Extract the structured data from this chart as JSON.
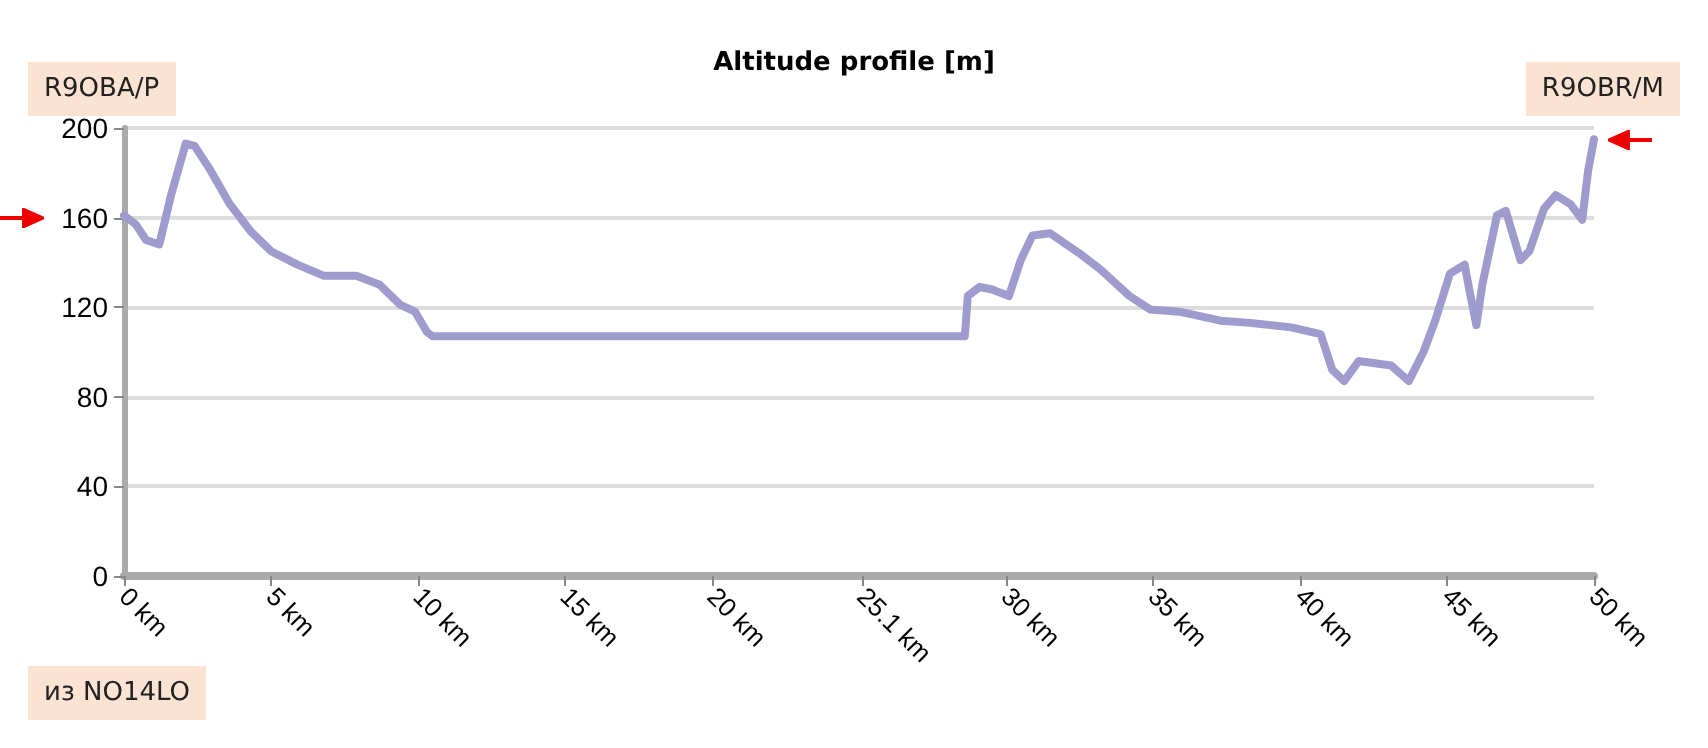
{
  "chart_data": {
    "type": "line",
    "title": "Altitude profile [m]",
    "annotations": [
      "R9OBA/P",
      "R9OBR/M",
      "из NO14LO"
    ],
    "x": [
      0,
      0.4,
      0.75,
      1.2,
      1.6,
      2.1,
      2.4,
      2.9,
      3.6,
      4.3,
      5.0,
      5.9,
      6.8,
      7.9,
      8.7,
      9.4,
      9.9,
      10.3,
      10.5,
      28.6,
      28.7,
      29.1,
      29.5,
      30.1,
      30.5,
      30.9,
      31.5,
      32.5,
      33.2,
      34.2,
      34.9,
      35.9,
      37.3,
      38.3,
      39.7,
      40.7,
      41.1,
      41.5,
      42.0,
      43.1,
      43.7,
      44.2,
      44.6,
      45.1,
      45.6,
      45.8,
      46.0,
      46.2,
      46.7,
      47.0,
      47.5,
      47.8,
      48.3,
      48.7,
      49.2,
      49.6,
      49.8,
      50
    ],
    "series": [
      {
        "color": "#9d9ccc",
        "values": [
          161,
          157,
          150,
          148,
          170,
          193,
          192,
          182,
          166,
          154,
          145,
          139,
          134,
          134,
          130,
          121,
          118,
          109,
          107,
          107,
          125,
          129,
          128,
          125,
          141,
          152,
          153,
          144,
          137,
          125,
          119,
          118,
          114,
          113,
          111,
          108,
          92,
          87,
          96,
          94,
          87,
          100,
          114,
          135,
          139,
          125,
          112,
          130,
          161,
          163,
          141,
          145,
          164,
          170,
          166,
          159,
          181,
          195
        ]
      }
    ],
    "xlim": [
      0,
      50
    ],
    "xticks": [
      {
        "value": 0,
        "label": "0 km"
      },
      {
        "value": 5,
        "label": "5 km"
      },
      {
        "value": 10,
        "label": "10 km"
      },
      {
        "value": 15,
        "label": "15 km"
      },
      {
        "value": 20,
        "label": "20 km"
      },
      {
        "value": 25.1,
        "label": "25.1 km"
      },
      {
        "value": 30,
        "label": "30 km"
      },
      {
        "value": 35,
        "label": "35 km"
      },
      {
        "value": 40,
        "label": "40 km"
      },
      {
        "value": 45,
        "label": "45 km"
      },
      {
        "value": 50,
        "label": "50 km"
      }
    ],
    "ylim": [
      0,
      200
    ],
    "yticks": [
      0,
      40,
      80,
      120,
      160,
      200
    ],
    "grid": "y",
    "marker": "none",
    "line_style": "solid"
  }
}
